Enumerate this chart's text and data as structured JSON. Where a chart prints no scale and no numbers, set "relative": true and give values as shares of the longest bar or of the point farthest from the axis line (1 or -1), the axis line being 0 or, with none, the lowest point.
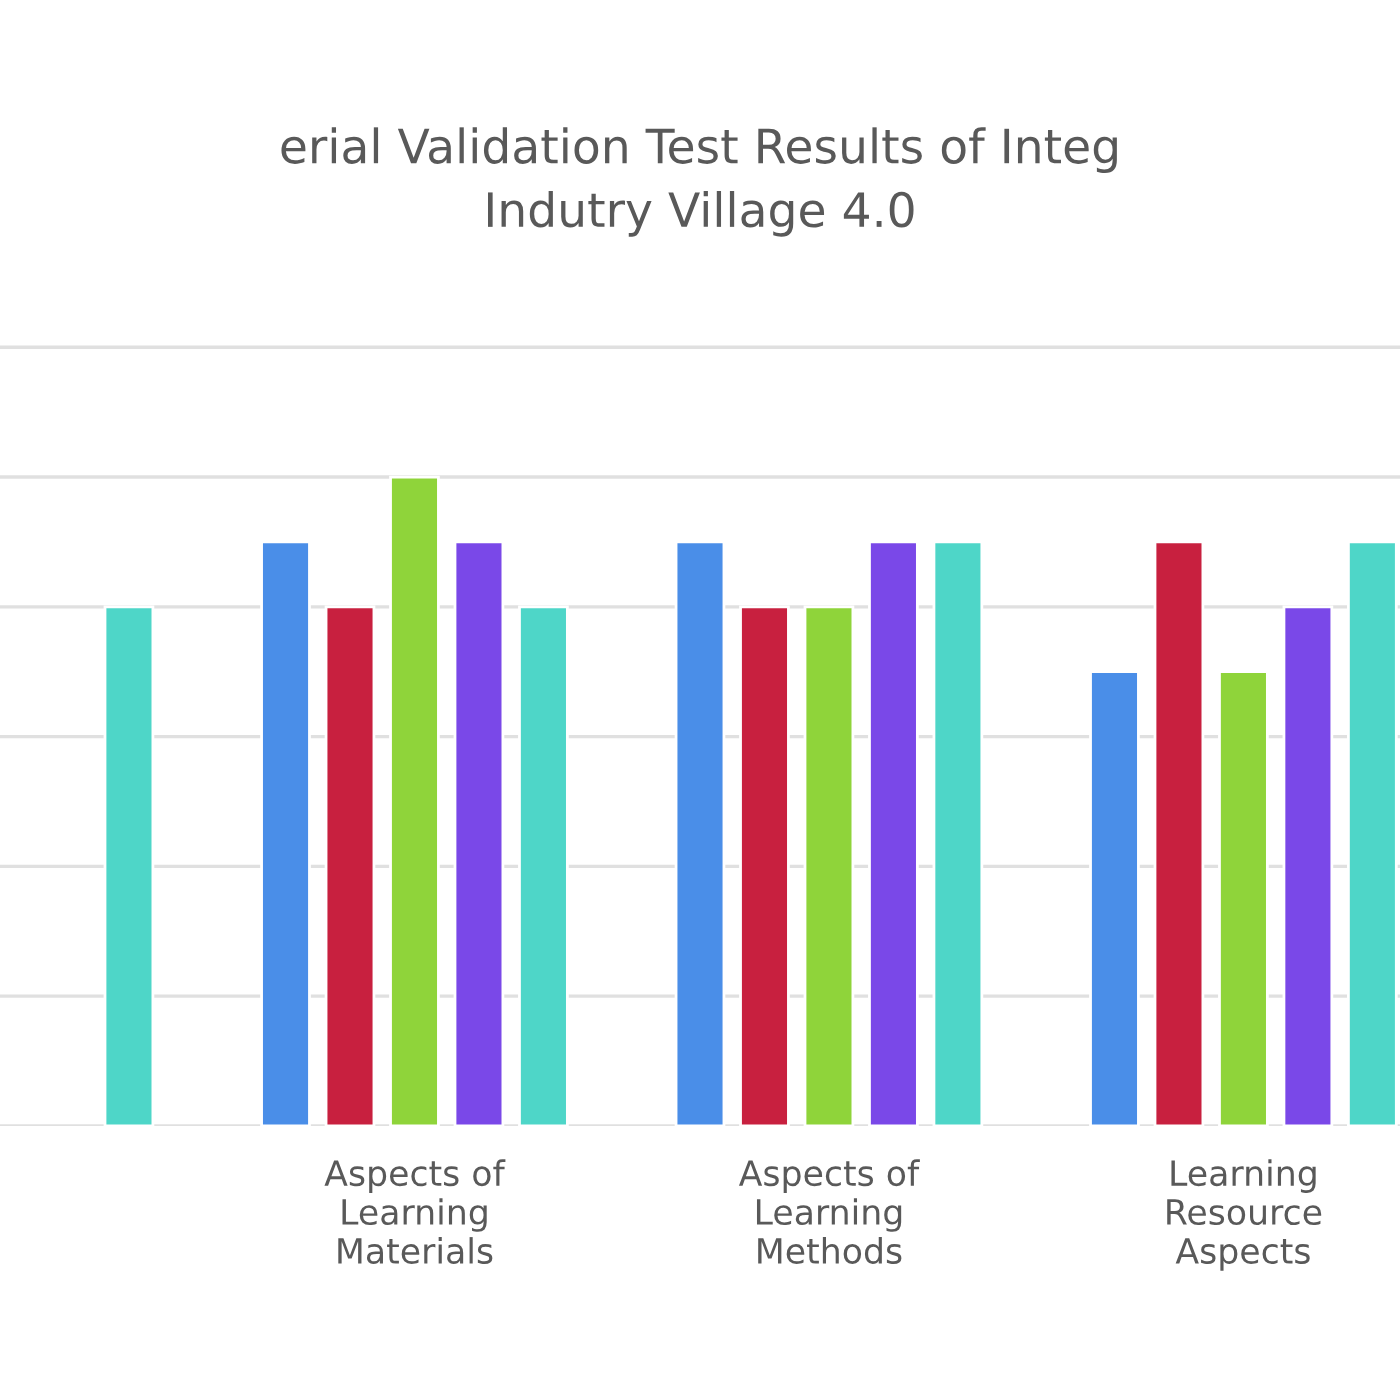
{
  "chart_data": {
    "type": "bar",
    "title": "erial Validation Test Results of Integ\nIndutry Village 4.0",
    "categories": [
      null,
      "Aspects of\nLearning\nMaterials",
      "Aspects of\nLearning\nMethods",
      "Learning\nResource\nAspects"
    ],
    "relative": true,
    "grid": "y",
    "series": [
      {
        "color": "#4a8ee8",
        "values": [
          null,
          0.9,
          0.9,
          0.7
        ]
      },
      {
        "color": "#c8203f",
        "values": [
          null,
          0.8,
          0.8,
          0.9
        ]
      },
      {
        "color": "#8fd43a",
        "values": [
          null,
          1.0,
          0.8,
          0.7
        ]
      },
      {
        "color": "#7a48e8",
        "values": [
          null,
          0.9,
          0.9,
          0.8
        ]
      },
      {
        "color": "#4ed6c8",
        "values": [
          0.8,
          0.8,
          0.9,
          0.9
        ]
      }
    ]
  }
}
